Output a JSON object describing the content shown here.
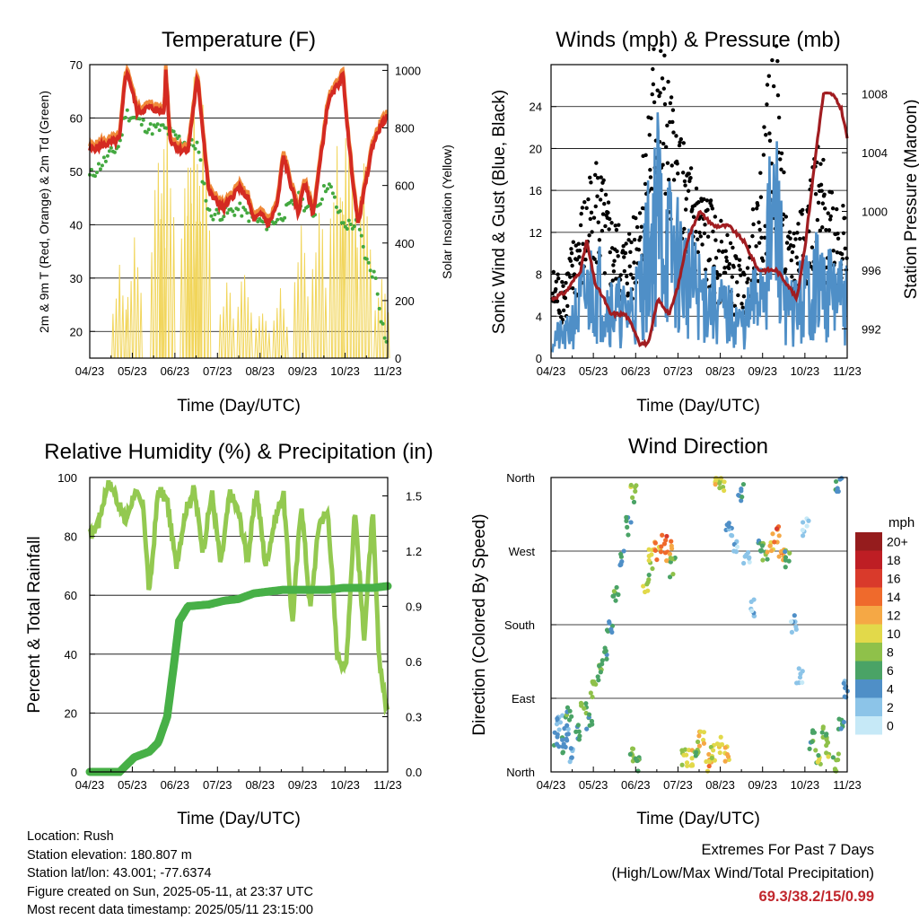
{
  "x_ticks": [
    "04/23",
    "05/23",
    "06/23",
    "07/23",
    "08/23",
    "09/23",
    "10/23",
    "11/23"
  ],
  "panels": {
    "temperature": {
      "title": "Temperature (F)",
      "ylabel_left": "2m & 9m T (Red, Orange) & 2m Td (Green)",
      "ylabel_right": "Solar Insolation (Yellow)",
      "xlabel": "Time (Day/UTC)",
      "left_ticks": [
        "20",
        "30",
        "40",
        "50",
        "60",
        "70"
      ],
      "right_ticks": [
        "0",
        "200",
        "400",
        "600",
        "800",
        "1000"
      ]
    },
    "winds": {
      "title": "Winds (mph) & Pressure (mb)",
      "ylabel_left": "Sonic Wind & Gust (Blue, Black)",
      "ylabel_right": "Station Pressure (Maroon)",
      "xlabel": "Time (Day/UTC)",
      "left_ticks": [
        "0",
        "4",
        "8",
        "12",
        "16",
        "20",
        "24"
      ],
      "right_ticks": [
        "992",
        "996",
        "1000",
        "1004",
        "1008"
      ]
    },
    "humidity": {
      "title": "Relative Humidity (%) & Precipitation (in)",
      "ylabel_left": "Percent & Total Rainfall",
      "xlabel": "Time (Day/UTC)",
      "left_ticks": [
        "0",
        "20",
        "40",
        "60",
        "80",
        "100"
      ],
      "right_ticks": [
        "0.0",
        "0.3",
        "0.6",
        "0.9",
        "1.2",
        "1.5"
      ]
    },
    "direction": {
      "title": "Wind Direction",
      "ylabel_left": "Direction (Colored By Speed)",
      "xlabel": "Time (Day/UTC)",
      "dir_ticks": [
        "North",
        "East",
        "South",
        "West",
        "North"
      ],
      "legend_title": "mph",
      "legend_labels": [
        "0",
        "2",
        "4",
        "6",
        "8",
        "10",
        "12",
        "14",
        "16",
        "18",
        "20+"
      ],
      "legend_colors": [
        "#c6e9f7",
        "#8cc4e8",
        "#4f8fc7",
        "#4aa366",
        "#8fc14a",
        "#e2d94a",
        "#f5a845",
        "#ef6a2c",
        "#d93a2b",
        "#be1e24",
        "#951c1d"
      ]
    }
  },
  "chart_data": [
    {
      "type": "line",
      "title": "Temperature (F)",
      "xlabel": "Time (Day/UTC)",
      "ylabel": "2m & 9m T (Red, Orange) & 2m Td (Green)",
      "ylabel_right": "Solar Insolation (Yellow)",
      "categories": [
        "04/23",
        "05/23",
        "06/23",
        "07/23",
        "08/23",
        "09/23",
        "10/23",
        "11/23"
      ],
      "ylim": [
        15,
        70
      ],
      "ylim_right": [
        0,
        1020
      ],
      "series": [
        {
          "name": "2m & 9m T",
          "color": "#d42a22",
          "x": [
            0,
            0.5,
            1.0,
            1.2,
            1.3,
            1.6,
            2.0,
            2.5,
            2.55,
            2.7,
            3.0,
            3.3,
            3.6,
            3.65,
            4.0,
            4.5,
            5.0,
            5.3,
            5.5,
            5.8,
            6.0,
            6.3,
            6.5,
            7.0,
            7.2,
            7.5,
            8.0,
            8.5,
            8.7,
            9.0,
            9.5,
            9.8,
            10.0
          ],
          "y": [
            54,
            55,
            56,
            68,
            68,
            61,
            62,
            61,
            69,
            56,
            54,
            54,
            67,
            66,
            46,
            43,
            47,
            45,
            41,
            42,
            40,
            44,
            53,
            42,
            48,
            42,
            63,
            68,
            55,
            40,
            55,
            59,
            60
          ]
        },
        {
          "name": "2m Td",
          "color": "#43a83f",
          "x": [
            0,
            0.5,
            1.0,
            1.2,
            1.5,
            2.0,
            2.5,
            3.0,
            3.3,
            3.6,
            4.0,
            4.5,
            5.0,
            5.5,
            6.0,
            6.5,
            7.0,
            7.5,
            8.0,
            8.5,
            9.0,
            9.3,
            9.6,
            9.8,
            10.0
          ],
          "y": [
            49,
            52,
            55,
            61,
            60,
            58,
            58,
            56,
            55,
            55,
            42,
            42,
            43,
            41,
            40,
            42,
            45,
            42,
            48,
            40,
            40,
            33,
            30,
            22,
            17
          ]
        },
        {
          "name": "Solar Insolation",
          "color": "#f1d55a",
          "peaks_x": [
            1.0,
            1.5,
            2.3,
            2.6,
            3.3,
            3.5,
            3.8,
            4.6,
            5.2,
            5.8,
            6.4,
            7.1,
            7.7,
            8.3,
            8.7,
            9.2,
            9.8
          ],
          "peaks_y": [
            330,
            450,
            770,
            1000,
            850,
            1000,
            950,
            300,
            350,
            200,
            250,
            500,
            580,
            900,
            1000,
            700,
            300
          ]
        }
      ]
    },
    {
      "type": "scatter",
      "title": "Winds (mph) & Pressure (mb)",
      "xlabel": "Time (Day/UTC)",
      "ylabel": "Sonic Wind & Gust (Blue, Black)",
      "ylabel_right": "Station Pressure (Maroon)",
      "categories": [
        "04/23",
        "05/23",
        "06/23",
        "07/23",
        "08/23",
        "09/23",
        "10/23",
        "11/23"
      ],
      "ylim": [
        0,
        28
      ],
      "ylim_right": [
        990,
        1010
      ],
      "series": [
        {
          "name": "Gust",
          "color": "#000000",
          "x": [
            0.5,
            1.0,
            1.5,
            2.0,
            2.5,
            3.0,
            3.3,
            3.6,
            4.0,
            4.5,
            5.0,
            5.5,
            6.0,
            6.5,
            7.0,
            7.3,
            7.6,
            8.0,
            8.3,
            8.6,
            9.0,
            9.5,
            10.0
          ],
          "y": [
            6,
            10,
            14,
            10,
            8,
            12,
            18,
            24,
            18,
            14,
            12,
            10,
            8,
            6,
            12,
            18,
            22,
            8,
            10,
            12,
            14,
            12,
            10
          ]
        },
        {
          "name": "Sonic Wind",
          "color": "#4f8fc7",
          "x": [
            0.5,
            1.0,
            1.5,
            2.0,
            2.5,
            3.0,
            3.3,
            3.6,
            4.0,
            4.5,
            5.0,
            5.5,
            6.0,
            6.5,
            7.0,
            7.3,
            7.6,
            8.0,
            8.3,
            8.6,
            9.0,
            9.5,
            10.0
          ],
          "y": [
            2,
            5,
            7,
            5,
            4,
            6,
            10,
            14,
            10,
            8,
            6,
            5,
            4,
            3,
            6,
            10,
            13,
            4,
            5,
            6,
            7,
            6,
            5
          ]
        },
        {
          "name": "Station Pressure",
          "color": "#a11d21",
          "x": [
            0,
            0.5,
            1.0,
            1.2,
            1.5,
            1.8,
            2.0,
            2.5,
            2.8,
            3.0,
            3.3,
            3.6,
            4.0,
            4.3,
            4.6,
            5.0,
            5.5,
            6.0,
            6.5,
            7.0,
            7.3,
            7.6,
            8.0,
            8.3,
            8.6,
            9.0,
            9.2,
            9.5,
            9.8,
            10.0
          ],
          "y": [
            994,
            994.5,
            996,
            998,
            995,
            994,
            993,
            993,
            992,
            991,
            991,
            994,
            993,
            995,
            998,
            1000,
            999,
            999,
            998,
            996,
            996,
            996,
            995,
            994,
            998,
            1005,
            1008,
            1008,
            1007,
            1005
          ]
        }
      ]
    },
    {
      "type": "line",
      "title": "Relative Humidity (%) & Precipitation (in)",
      "xlabel": "Time (Day/UTC)",
      "ylabel": "Percent & Total Rainfall",
      "categories": [
        "04/23",
        "05/23",
        "06/23",
        "07/23",
        "08/23",
        "09/23",
        "10/23",
        "11/23"
      ],
      "ylim": [
        0,
        100
      ],
      "ylim_right": [
        0,
        1.6
      ],
      "series": [
        {
          "name": "Relative Humidity",
          "color": "#93c950",
          "x": [
            0,
            0.3,
            0.6,
            0.8,
            1.0,
            1.2,
            1.5,
            1.8,
            2.0,
            2.3,
            2.6,
            2.9,
            3.2,
            3.5,
            3.8,
            4.1,
            4.4,
            4.7,
            5.0,
            5.3,
            5.6,
            5.9,
            6.2,
            6.5,
            6.8,
            7.1,
            7.4,
            7.7,
            8.0,
            8.3,
            8.6,
            8.9,
            9.2,
            9.5,
            9.7,
            9.9,
            10.0
          ],
          "y": [
            80,
            85,
            98,
            96,
            90,
            85,
            95,
            90,
            60,
            96,
            92,
            70,
            88,
            96,
            75,
            95,
            70,
            95,
            88,
            72,
            96,
            70,
            85,
            95,
            50,
            92,
            55,
            85,
            88,
            40,
            35,
            90,
            45,
            88,
            40,
            25,
            20
          ]
        },
        {
          "name": "Total Rainfall",
          "color": "#47b047",
          "x": [
            0,
            1.0,
            1.5,
            2.0,
            2.3,
            2.6,
            2.9,
            3.0,
            3.3,
            4.0,
            4.5,
            5.0,
            5.5,
            6.0,
            6.5,
            7.0,
            7.5,
            8.0,
            8.5,
            9.0,
            9.5,
            10.0
          ],
          "y": [
            0,
            0,
            0.08,
            0.11,
            0.16,
            0.3,
            0.68,
            0.82,
            0.9,
            0.91,
            0.93,
            0.94,
            0.97,
            0.98,
            0.99,
            0.99,
            0.99,
            0.99,
            1.0,
            1.0,
            1.0,
            1.01
          ]
        }
      ]
    },
    {
      "type": "scatter",
      "title": "Wind Direction",
      "xlabel": "Time (Day/UTC)",
      "ylabel": "Direction (Colored By Speed)",
      "categories": [
        "04/23",
        "05/23",
        "06/23",
        "07/23",
        "08/23",
        "09/23",
        "10/23",
        "11/23"
      ],
      "yticks": [
        "North",
        "East",
        "South",
        "West",
        "North"
      ],
      "ylim": [
        0,
        360
      ],
      "points": [
        [
          0.2,
          40,
          4
        ],
        [
          0.3,
          60,
          3
        ],
        [
          0.4,
          30,
          5
        ],
        [
          0.5,
          45,
          4
        ],
        [
          0.6,
          70,
          6
        ],
        [
          0.7,
          20,
          3
        ],
        [
          0.9,
          50,
          5
        ],
        [
          1.1,
          80,
          7
        ],
        [
          1.3,
          60,
          6
        ],
        [
          1.4,
          100,
          8
        ],
        [
          1.6,
          120,
          7
        ],
        [
          1.8,
          140,
          6
        ],
        [
          2.0,
          180,
          5
        ],
        [
          2.2,
          220,
          6
        ],
        [
          2.4,
          260,
          4
        ],
        [
          2.6,
          300,
          5
        ],
        [
          2.8,
          340,
          8
        ],
        [
          2.7,
          20,
          7
        ],
        [
          2.9,
          10,
          6
        ],
        [
          3.2,
          230,
          8
        ],
        [
          3.4,
          260,
          9
        ],
        [
          3.6,
          270,
          12
        ],
        [
          3.8,
          280,
          15
        ],
        [
          4.0,
          270,
          13
        ],
        [
          4.1,
          250,
          8
        ],
        [
          4.5,
          20,
          9
        ],
        [
          4.7,
          15,
          10
        ],
        [
          4.9,
          30,
          8
        ],
        [
          5.1,
          40,
          11
        ],
        [
          5.3,
          10,
          12
        ],
        [
          5.5,
          25,
          9
        ],
        [
          5.7,
          35,
          10
        ],
        [
          5.9,
          20,
          11
        ],
        [
          5.6,
          350,
          11
        ],
        [
          5.8,
          355,
          9
        ],
        [
          6.0,
          300,
          3
        ],
        [
          6.2,
          280,
          2
        ],
        [
          6.4,
          340,
          4
        ],
        [
          6.6,
          260,
          2
        ],
        [
          6.8,
          200,
          2
        ],
        [
          7.0,
          280,
          5
        ],
        [
          7.2,
          270,
          7
        ],
        [
          7.4,
          280,
          11
        ],
        [
          7.6,
          290,
          14
        ],
        [
          7.8,
          270,
          12
        ],
        [
          8.0,
          260,
          6
        ],
        [
          8.2,
          180,
          2
        ],
        [
          8.4,
          120,
          1
        ],
        [
          8.6,
          300,
          1
        ],
        [
          8.8,
          40,
          6
        ],
        [
          9.0,
          20,
          8
        ],
        [
          9.2,
          50,
          7
        ],
        [
          9.4,
          30,
          9
        ],
        [
          9.6,
          10,
          8
        ],
        [
          9.8,
          60,
          5
        ],
        [
          9.9,
          100,
          4
        ],
        [
          9.7,
          350,
          5
        ]
      ]
    }
  ],
  "footer": {
    "location": "Location: Rush",
    "elevation": "Station elevation: 180.807 m",
    "latlon": "Station lat/lon: 43.001; -77.6374",
    "created": "Figure created on Sun, 2025-05-11, at 23:37 UTC",
    "latest": "Most recent data timestamp: 2025/05/11 23:15:00"
  },
  "extremes": {
    "title": "Extremes For Past 7 Days",
    "subtitle": "(High/Low/Max Wind/Total Precipitation)",
    "values": "69.3/38.2/15/0.99"
  }
}
